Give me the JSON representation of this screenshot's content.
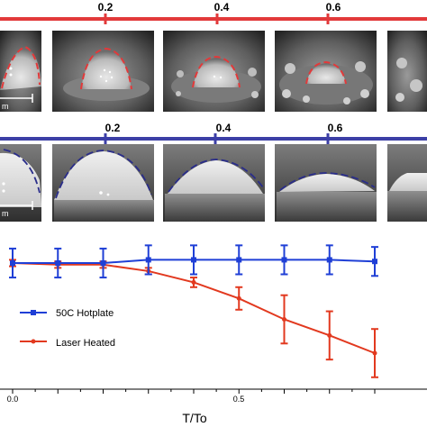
{
  "top_row": {
    "color": "#e2393a",
    "tick_labels": [
      "0.2",
      "0.4",
      "0.6"
    ],
    "droplet_outline_color": "#e2393a",
    "scale_label": "m"
  },
  "bottom_row": {
    "color": "#3c3fa6",
    "tick_labels": [
      "0.2",
      "0.4",
      "0.6"
    ],
    "droplet_outline_color": "#2a2d8a",
    "scale_label": "m"
  },
  "chart_data": {
    "type": "line",
    "xlabel": "T/To",
    "x_tick_labels": [
      "0.0",
      "0.5"
    ],
    "xlim": [
      0,
      0.8
    ],
    "grid": false,
    "legend_position": "center-left",
    "series": [
      {
        "name": "50C Hotplate",
        "color": "#1f3fd6",
        "marker": "square",
        "x": [
          0.0,
          0.1,
          0.2,
          0.3,
          0.4,
          0.5,
          0.6,
          0.7,
          0.8
        ],
        "y": [
          0.0,
          0.0,
          0.0,
          0.02,
          0.02,
          0.02,
          0.02,
          0.02,
          0.01
        ],
        "err": [
          0.09,
          0.09,
          0.09,
          0.09,
          0.09,
          0.09,
          0.09,
          0.09,
          0.09
        ]
      },
      {
        "name": "Laser Heated",
        "color": "#e2391f",
        "marker": "dot",
        "x": [
          0.0,
          0.1,
          0.2,
          0.3,
          0.4,
          0.5,
          0.6,
          0.7,
          0.8
        ],
        "y": [
          0.0,
          -0.01,
          -0.01,
          -0.05,
          -0.12,
          -0.22,
          -0.35,
          -0.45,
          -0.56
        ],
        "err": [
          0.02,
          0.02,
          0.02,
          0.02,
          0.03,
          0.07,
          0.15,
          0.15,
          0.15
        ]
      }
    ],
    "ylim": [
      -0.75,
      0.12
    ]
  }
}
